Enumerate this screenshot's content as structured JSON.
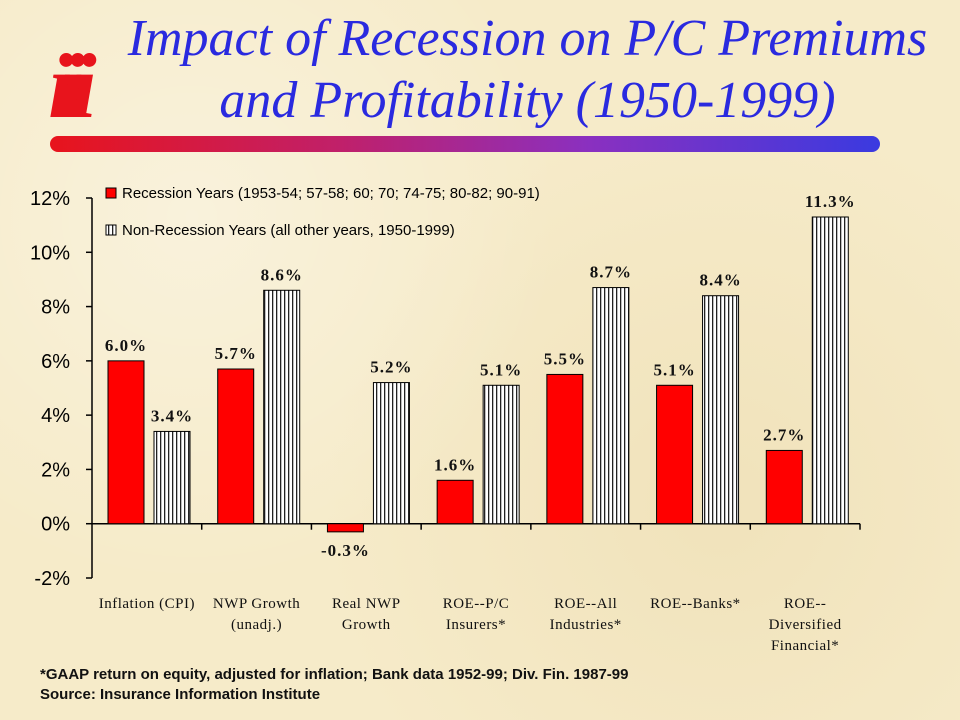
{
  "header": {
    "logo_text": "iii",
    "title_line1": "Impact of Recession on P/C Premiums",
    "title_line2": "and Profitability (1950-1999)"
  },
  "colors": {
    "recession": "#ff0000",
    "non_recession": "#ffffff",
    "title": "#2a2adf",
    "logo": "#e8141c"
  },
  "footnotes": {
    "line1": "*GAAP return on equity, adjusted for inflation; Bank data 1952-99; Div. Fin. 1987-99",
    "line2": "Source: Insurance Information Institute"
  },
  "chart_data": {
    "type": "bar",
    "ylim": [
      -2,
      12
    ],
    "yticks": [
      -2,
      0,
      2,
      4,
      6,
      8,
      10,
      12
    ],
    "ytick_labels": [
      "-2%",
      "0%",
      "2%",
      "4%",
      "6%",
      "8%",
      "10%",
      "12%"
    ],
    "grid": false,
    "legend": "top-left",
    "categories": [
      [
        "Inflation (CPI)"
      ],
      [
        "NWP Growth",
        "(unadj.)"
      ],
      [
        "Real NWP",
        "Growth"
      ],
      [
        "ROE--P/C",
        "Insurers*"
      ],
      [
        "ROE--All",
        "Industries*"
      ],
      [
        "ROE--Banks*"
      ],
      [
        "ROE--",
        "Diversified",
        "Financial*"
      ]
    ],
    "series": [
      {
        "name": "Recession Years (1953-54; 57-58; 60; 70; 74-75; 80-82; 90-91)",
        "fill": "solid-red",
        "values": [
          6.0,
          5.7,
          -0.3,
          1.6,
          5.5,
          5.1,
          2.7
        ],
        "labels": [
          "6.0%",
          "5.7%",
          "-0.3%",
          "1.6%",
          "5.5%",
          "5.1%",
          "2.7%"
        ]
      },
      {
        "name": "Non-Recession Years (all other years, 1950-1999)",
        "fill": "vertical-stripes",
        "values": [
          3.4,
          8.6,
          5.2,
          5.1,
          8.7,
          8.4,
          11.3
        ],
        "labels": [
          "3.4%",
          "8.6%",
          "5.2%",
          "5.1%",
          "8.7%",
          "8.4%",
          "11.3%"
        ]
      }
    ]
  }
}
